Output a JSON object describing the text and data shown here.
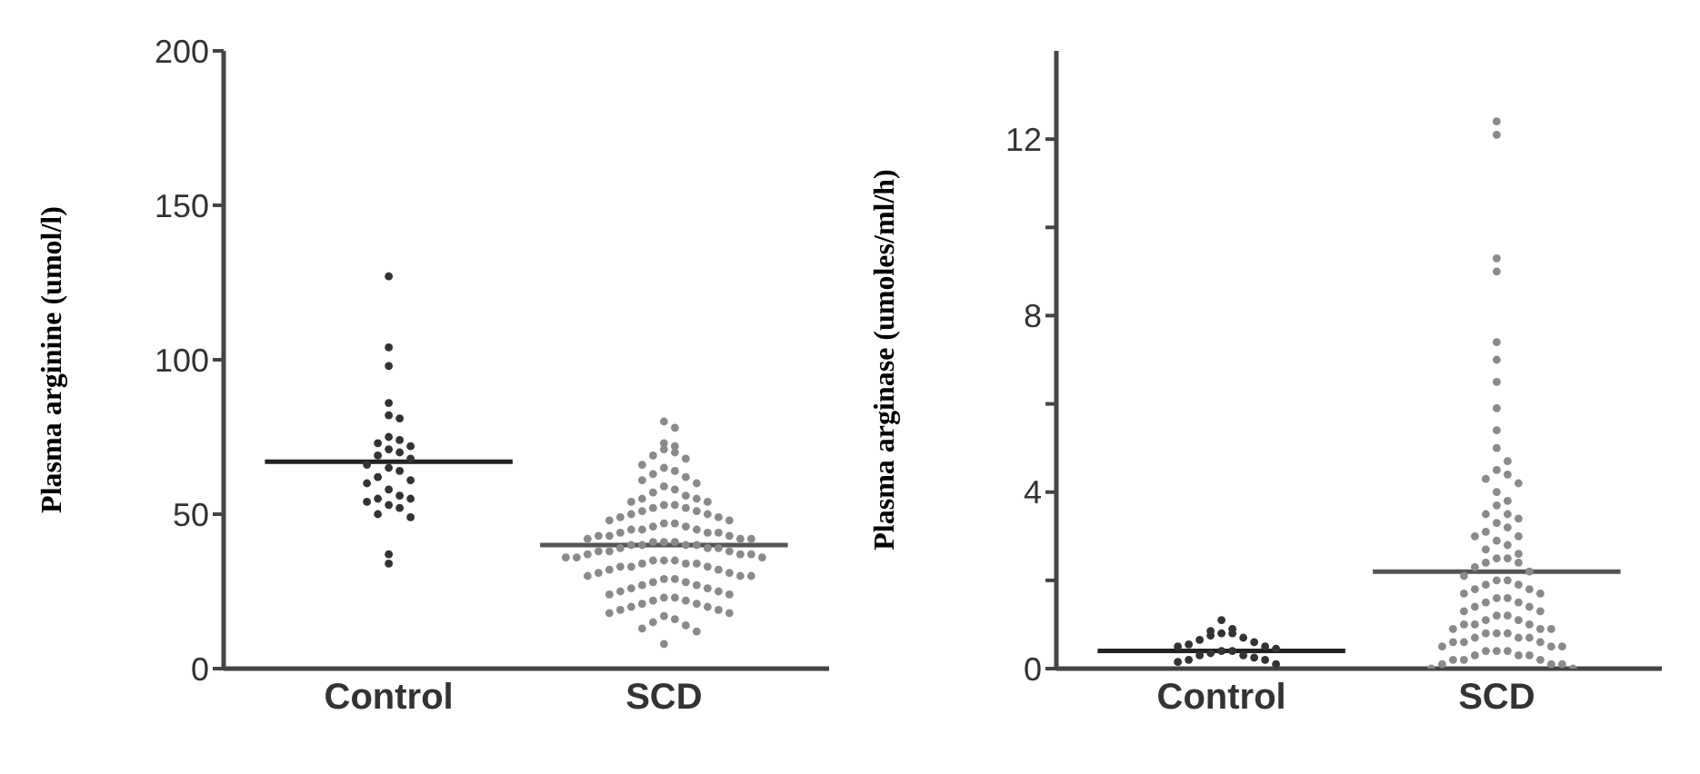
{
  "chart_data": [
    {
      "type": "scatter",
      "ylabel": "Plasma arginine (umol/l)",
      "categories": [
        "Control",
        "SCD"
      ],
      "ylim": [
        0,
        200
      ],
      "yticks": [
        0,
        50,
        100,
        150,
        200
      ],
      "grid": false,
      "marker": "circle",
      "series": [
        {
          "color": "#333333",
          "x": [
            "Control",
            "Control",
            "Control",
            "Control",
            "Control",
            "Control",
            "Control",
            "Control",
            "Control",
            "Control",
            "Control",
            "Control",
            "Control",
            "Control",
            "Control",
            "Control",
            "Control",
            "Control",
            "Control",
            "Control",
            "Control",
            "Control",
            "Control",
            "Control",
            "Control",
            "Control",
            "Control",
            "Control",
            "Control",
            "Control",
            "Control"
          ],
          "values": [
            127,
            104,
            98,
            86,
            82,
            81,
            75,
            74,
            73,
            72,
            71,
            70,
            69,
            68,
            66,
            65,
            64,
            62,
            61,
            60,
            58,
            56,
            55,
            55,
            54,
            53,
            52,
            50,
            49,
            37,
            34
          ]
        },
        {
          "color": "#8a8a8a",
          "x": [
            "SCD",
            "SCD",
            "SCD",
            "SCD",
            "SCD",
            "SCD",
            "SCD",
            "SCD",
            "SCD",
            "SCD",
            "SCD",
            "SCD",
            "SCD",
            "SCD",
            "SCD",
            "SCD",
            "SCD",
            "SCD",
            "SCD",
            "SCD",
            "SCD",
            "SCD",
            "SCD",
            "SCD",
            "SCD",
            "SCD",
            "SCD",
            "SCD",
            "SCD",
            "SCD",
            "SCD",
            "SCD",
            "SCD",
            "SCD",
            "SCD",
            "SCD",
            "SCD",
            "SCD",
            "SCD",
            "SCD",
            "SCD",
            "SCD",
            "SCD",
            "SCD",
            "SCD",
            "SCD",
            "SCD",
            "SCD",
            "SCD",
            "SCD",
            "SCD",
            "SCD",
            "SCD",
            "SCD",
            "SCD",
            "SCD",
            "SCD",
            "SCD",
            "SCD",
            "SCD",
            "SCD",
            "SCD",
            "SCD",
            "SCD",
            "SCD",
            "SCD",
            "SCD",
            "SCD",
            "SCD",
            "SCD",
            "SCD",
            "SCD",
            "SCD",
            "SCD",
            "SCD",
            "SCD",
            "SCD",
            "SCD",
            "SCD",
            "SCD",
            "SCD",
            "SCD",
            "SCD",
            "SCD",
            "SCD",
            "SCD",
            "SCD",
            "SCD",
            "SCD",
            "SCD",
            "SCD",
            "SCD",
            "SCD",
            "SCD",
            "SCD",
            "SCD",
            "SCD",
            "SCD",
            "SCD",
            "SCD",
            "SCD",
            "SCD",
            "SCD",
            "SCD",
            "SCD",
            "SCD",
            "SCD",
            "SCD",
            "SCD",
            "SCD",
            "SCD",
            "SCD",
            "SCD",
            "SCD",
            "SCD",
            "SCD",
            "SCD"
          ],
          "values": [
            80,
            78,
            73,
            72,
            71,
            70,
            69,
            68,
            66,
            65,
            64,
            63,
            62,
            61,
            60,
            59,
            58,
            57,
            56,
            55,
            55,
            54,
            54,
            53,
            53,
            52,
            52,
            51,
            51,
            50,
            50,
            49,
            49,
            48,
            48,
            47,
            47,
            46,
            46,
            45,
            45,
            45,
            44,
            44,
            44,
            43,
            43,
            43,
            42,
            42,
            42,
            41,
            41,
            41,
            40,
            40,
            40,
            40,
            39,
            39,
            39,
            38,
            38,
            38,
            37,
            37,
            37,
            36,
            36,
            36,
            35,
            35,
            35,
            34,
            34,
            34,
            33,
            33,
            33,
            32,
            32,
            31,
            31,
            30,
            30,
            30,
            29,
            29,
            28,
            28,
            27,
            27,
            26,
            26,
            25,
            25,
            24,
            24,
            23,
            23,
            22,
            22,
            21,
            21,
            20,
            20,
            19,
            19,
            18,
            18,
            17,
            16,
            15,
            14,
            13,
            12,
            8
          ]
        }
      ],
      "ref_lines": [
        {
          "axis": "y",
          "value": 67,
          "color": "#222222"
        },
        {
          "axis": "y",
          "value": 40,
          "color": "#555555"
        }
      ]
    },
    {
      "type": "scatter",
      "ylabel": "Plasma arginase (umoles/ml/h)",
      "categories": [
        "Control",
        "SCD"
      ],
      "ylim": [
        0,
        14
      ],
      "yticks": [
        0,
        {
          "value": 2,
          "label": null
        },
        4,
        {
          "value": 6,
          "label": null
        },
        8,
        {
          "value": 10,
          "label": null
        },
        12
      ],
      "grid": false,
      "marker": "circle",
      "series": [
        {
          "color": "#333333",
          "x": [
            "Control",
            "Control",
            "Control",
            "Control",
            "Control",
            "Control",
            "Control",
            "Control",
            "Control",
            "Control",
            "Control",
            "Control",
            "Control",
            "Control",
            "Control",
            "Control",
            "Control",
            "Control",
            "Control",
            "Control",
            "Control",
            "Control",
            "Control"
          ],
          "values": [
            1.1,
            0.9,
            0.85,
            0.8,
            0.8,
            0.75,
            0.7,
            0.65,
            0.6,
            0.55,
            0.5,
            0.5,
            0.45,
            0.4,
            0.4,
            0.35,
            0.3,
            0.3,
            0.25,
            0.2,
            0.2,
            0.15,
            0.1
          ]
        },
        {
          "color": "#8a8a8a",
          "x": [
            "SCD",
            "SCD",
            "SCD",
            "SCD",
            "SCD",
            "SCD",
            "SCD",
            "SCD",
            "SCD",
            "SCD",
            "SCD",
            "SCD",
            "SCD",
            "SCD",
            "SCD",
            "SCD",
            "SCD",
            "SCD",
            "SCD",
            "SCD",
            "SCD",
            "SCD",
            "SCD",
            "SCD",
            "SCD",
            "SCD",
            "SCD",
            "SCD",
            "SCD",
            "SCD",
            "SCD",
            "SCD",
            "SCD",
            "SCD",
            "SCD",
            "SCD",
            "SCD",
            "SCD",
            "SCD",
            "SCD",
            "SCD",
            "SCD",
            "SCD",
            "SCD",
            "SCD",
            "SCD",
            "SCD",
            "SCD",
            "SCD",
            "SCD",
            "SCD",
            "SCD",
            "SCD",
            "SCD",
            "SCD",
            "SCD",
            "SCD",
            "SCD",
            "SCD",
            "SCD",
            "SCD",
            "SCD",
            "SCD",
            "SCD",
            "SCD",
            "SCD",
            "SCD",
            "SCD",
            "SCD",
            "SCD",
            "SCD",
            "SCD",
            "SCD",
            "SCD",
            "SCD",
            "SCD",
            "SCD",
            "SCD",
            "SCD",
            "SCD",
            "SCD",
            "SCD",
            "SCD",
            "SCD",
            "SCD",
            "SCD",
            "SCD",
            "SCD",
            "SCD"
          ],
          "values": [
            12.4,
            12.1,
            9.3,
            9.0,
            7.4,
            7.0,
            6.5,
            5.9,
            5.4,
            5.0,
            4.7,
            4.5,
            4.4,
            4.3,
            4.2,
            4.0,
            3.8,
            3.7,
            3.5,
            3.5,
            3.4,
            3.3,
            3.2,
            3.1,
            3.0,
            3.0,
            2.9,
            2.8,
            2.7,
            2.6,
            2.5,
            2.5,
            2.4,
            2.4,
            2.3,
            2.2,
            2.1,
            2.0,
            2.0,
            1.9,
            1.9,
            1.8,
            1.8,
            1.7,
            1.7,
            1.6,
            1.6,
            1.5,
            1.5,
            1.4,
            1.4,
            1.3,
            1.3,
            1.2,
            1.2,
            1.1,
            1.1,
            1.0,
            1.0,
            1.0,
            0.9,
            0.9,
            0.9,
            0.8,
            0.8,
            0.8,
            0.7,
            0.7,
            0.7,
            0.6,
            0.6,
            0.6,
            0.5,
            0.5,
            0.5,
            0.4,
            0.4,
            0.4,
            0.3,
            0.3,
            0.3,
            0.2,
            0.2,
            0.2,
            0.1,
            0.1,
            0.1,
            0,
            0
          ]
        }
      ],
      "ref_lines": [
        {
          "axis": "y",
          "value": 0.4,
          "color": "#222222"
        },
        {
          "axis": "y",
          "value": 2.2,
          "color": "#555555"
        }
      ]
    }
  ]
}
